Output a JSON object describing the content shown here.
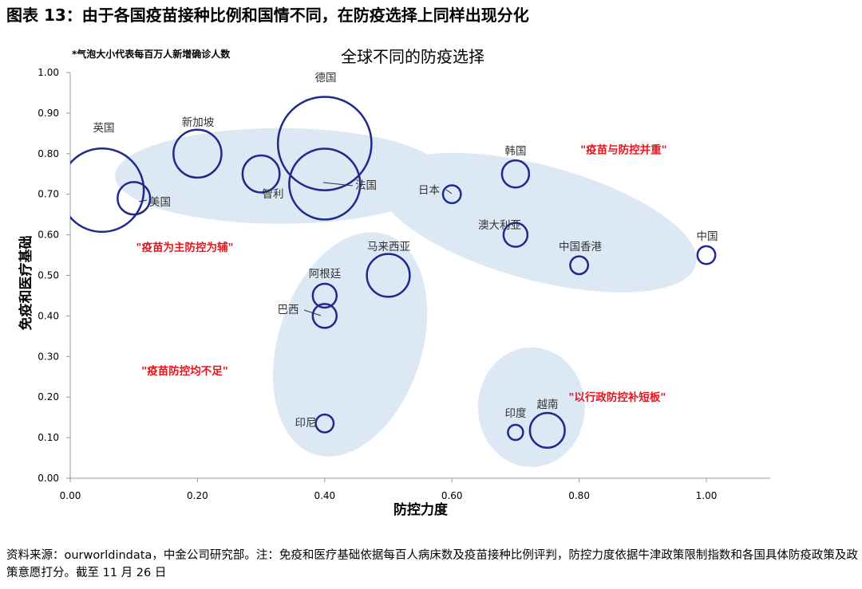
{
  "figure_title": "图表 13：由于各国疫苗接种比例和国情不同，在防疫选择上同样出现分化",
  "source_note": "资料来源：ourworldindata，中金公司研究部。注：免疫和医疗基础依据每百人病床数及疫苗接种比例评判，防控力度依据牛津政策限制指数和各国具体防疫政策及政策意愿打分。截至 11 月 26 日",
  "colors": {
    "bubble": "#1f2a8c",
    "cluster_fill": "#dde8f5",
    "annotation": "#e8141c",
    "axis": "#999999"
  },
  "chart_data": {
    "type": "scatter",
    "title": "全球不同的防疫选择",
    "subtitle": "*气泡大小代表每百万人新增确诊人数",
    "xlabel": "防控力度",
    "ylabel": "免疫和医疗基础",
    "xlim": [
      0,
      1.1
    ],
    "ylim": [
      0,
      1
    ],
    "xticks": [
      "0.00",
      "0.20",
      "0.40",
      "0.60",
      "0.80",
      "1.00"
    ],
    "yticks": [
      "0.00",
      "0.10",
      "0.20",
      "0.30",
      "0.40",
      "0.50",
      "0.60",
      "0.70",
      "0.80",
      "0.90",
      "1.00"
    ],
    "grid": false,
    "points": [
      {
        "label": "英国",
        "x": 0.05,
        "y": 0.71,
        "size": 45
      },
      {
        "label": "新加坡",
        "x": 0.2,
        "y": 0.8,
        "size": 14
      },
      {
        "label": "美国",
        "x": 0.1,
        "y": 0.69,
        "size": 6
      },
      {
        "label": "智利",
        "x": 0.3,
        "y": 0.75,
        "size": 8
      },
      {
        "label": "德国",
        "x": 0.4,
        "y": 0.825,
        "size": 57
      },
      {
        "label": "法国",
        "x": 0.4,
        "y": 0.725,
        "size": 32
      },
      {
        "label": "日本",
        "x": 0.6,
        "y": 0.7,
        "size": 1.5
      },
      {
        "label": "韩国",
        "x": 0.7,
        "y": 0.75,
        "size": 4
      },
      {
        "label": "澳大利亚",
        "x": 0.7,
        "y": 0.6,
        "size": 3
      },
      {
        "label": "中国香港",
        "x": 0.8,
        "y": 0.525,
        "size": 1.5
      },
      {
        "label": "中国",
        "x": 1.0,
        "y": 0.55,
        "size": 1.5
      },
      {
        "label": "马来西亚",
        "x": 0.5,
        "y": 0.5,
        "size": 11
      },
      {
        "label": "阿根廷",
        "x": 0.4,
        "y": 0.45,
        "size": 3
      },
      {
        "label": "巴西",
        "x": 0.4,
        "y": 0.4,
        "size": 3
      },
      {
        "label": "印尼",
        "x": 0.4,
        "y": 0.135,
        "size": 1.5
      },
      {
        "label": "印度",
        "x": 0.7,
        "y": 0.113,
        "size": 1
      },
      {
        "label": "越南",
        "x": 0.75,
        "y": 0.118,
        "size": 7
      }
    ],
    "annotations": [
      {
        "text": "\"疫苗与防控并重\"",
        "x": 0.87,
        "y": 0.81
      },
      {
        "text": "\"疫苗为主防控为辅\"",
        "x": 0.18,
        "y": 0.57
      },
      {
        "text": "\"疫苗防控均不足\"",
        "x": 0.18,
        "y": 0.265
      },
      {
        "text": "\"以行政防控补短板\"",
        "x": 0.86,
        "y": 0.2
      }
    ]
  }
}
